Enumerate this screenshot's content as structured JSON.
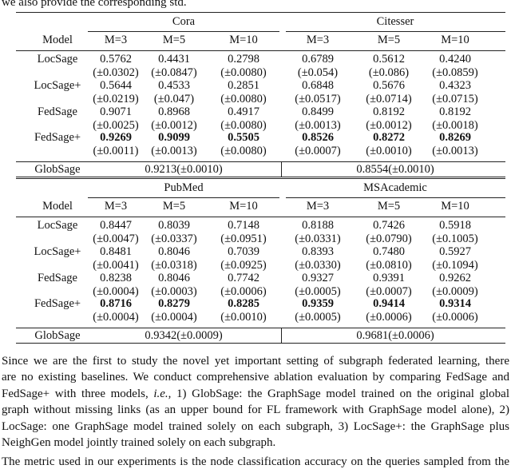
{
  "intro": "we also provide the corresponding std.",
  "tables": [
    {
      "datasets": [
        "Cora",
        "Citesser"
      ],
      "header": [
        "Model",
        "M=3",
        "M=5",
        "M=10",
        "M=3",
        "M=5",
        "M=10"
      ],
      "rows": [
        {
          "model": "LocSage",
          "means": [
            "0.5762",
            "0.4431",
            "0.2798",
            "0.6789",
            "0.5612",
            "0.4240"
          ],
          "stds": [
            "(±0.0302)",
            "(±0.0847)",
            "(±0.0080)",
            "(±0.054)",
            "(±0.086)",
            "(±0.0859)"
          ]
        },
        {
          "model": "LocSage+",
          "means": [
            "0.5644",
            "0.4533",
            "0.2851",
            "0.6848",
            "0.5676",
            "0.4323"
          ],
          "stds": [
            "(±0.0219)",
            "(±0.047)",
            "(±0.0080)",
            "(±0.0517)",
            "(±0.0714)",
            "(±0.0715)"
          ]
        },
        {
          "model": "FedSage",
          "means": [
            "0.9071",
            "0.8968",
            "0.4917",
            "0.8499",
            "0.8192",
            "0.8192"
          ],
          "stds": [
            "(±0.0025)",
            "(±0.0012)",
            "(±0.0080)",
            "(±0.0013)",
            "(±0.0012)",
            "(±0.0018)"
          ]
        },
        {
          "model": "FedSage+",
          "bold": true,
          "means": [
            "0.9269",
            "0.9099",
            "0.5505",
            "0.8526",
            "0.8272",
            "0.8269"
          ],
          "stds": [
            "(±0.0011)",
            "(±0.0013)",
            "(±0.0080)",
            "(±0.0007)",
            "(±0.0010)",
            "(±0.0013)"
          ]
        }
      ],
      "glob": {
        "model": "GlobSage",
        "values": [
          "0.9213(±0.0010)",
          "0.8554(±0.0010)"
        ]
      }
    },
    {
      "datasets": [
        "PubMed",
        "MSAcademic"
      ],
      "header": [
        "Model",
        "M=3",
        "M=5",
        "M=10",
        "M=3",
        "M=5",
        "M=10"
      ],
      "rows": [
        {
          "model": "LocSage",
          "means": [
            "0.8447",
            "0.8039",
            "0.7148",
            "0.8188",
            "0.7426",
            "0.5918"
          ],
          "stds": [
            "(±0.0047)",
            "(±0.0337)",
            "(±0.0951)",
            "(±0.0331)",
            "(±0.0790)",
            "(±0.1005)"
          ]
        },
        {
          "model": "LocSage+",
          "means": [
            "0.8481",
            "0.8046",
            "0.7039",
            "0.8393",
            "0.7480",
            "0.5927"
          ],
          "stds": [
            "(±0.0041)",
            "(±0.0318)",
            "(±0.0925)",
            "(±0.0330)",
            "(±0.0810)",
            "(±0.1094)"
          ]
        },
        {
          "model": "FedSage",
          "means": [
            "0.8238",
            "0.8046",
            "0.7742",
            "0.9327",
            "0.9391",
            "0.9262"
          ],
          "stds": [
            "(±0.0004)",
            "(±0.0003)",
            "(±0.0006)",
            "(±0.0005)",
            "(±0.0007)",
            "(±0.0009)"
          ]
        },
        {
          "model": "FedSage+",
          "bold": true,
          "means": [
            "0.8716",
            "0.8279",
            "0.8285",
            "0.9359",
            "0.9414",
            "0.9314"
          ],
          "stds": [
            "(±0.0004)",
            "(±0.0004)",
            "(±0.0010)",
            "(±0.0005)",
            "(±0.0006)",
            "(±0.0006)"
          ]
        }
      ],
      "glob": {
        "model": "GlobSage",
        "values": [
          "0.9342(±0.0009)",
          "0.9681(±0.0006)"
        ]
      }
    }
  ],
  "paragraphs": [
    {
      "lines": [
        [
          "Since we are the first to study the novel yet important setting of subgraph federated learning, there"
        ],
        [
          "are no existing baselines. We conduct comprehensive ablation evaluation by comparing FedSage and"
        ],
        [
          "FedSage+ with three models, ",
          {
            "text": "i.e.",
            "italic": true
          },
          ", 1) GlobSage: the GraphSage model trained on the original global"
        ],
        [
          "graph without missing links (as an upper bound for FL framework with GraphSage model alone), 2)"
        ],
        [
          "LocSage: one GraphSage model trained solely on each subgraph, 3) LocSage+: the GraphSage plus"
        ],
        [
          "NeighGen model jointly trained solely on each subgraph."
        ]
      ]
    },
    {
      "lines": [
        [
          "The metric used in our experiments is the node classification accuracy on the queries sampled from the"
        ]
      ]
    }
  ]
}
